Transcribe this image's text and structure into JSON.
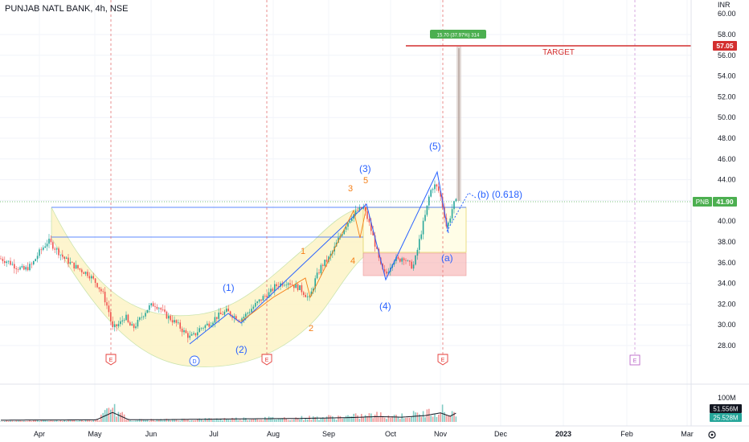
{
  "header": {
    "symbol_title": "PUNJAB NATL BANK, 4h, NSE"
  },
  "price_axis": {
    "unit_label": "INR",
    "top_partial_label": "60.00",
    "ticks": [
      "58.00",
      "56.00",
      "54.00",
      "52.00",
      "50.00",
      "48.00",
      "46.00",
      "44.00",
      "42.00",
      "40.00",
      "38.00",
      "36.00",
      "34.00",
      "32.00",
      "30.00",
      "28.00"
    ]
  },
  "badges": {
    "target_price": "57.05",
    "symbol": "PNB",
    "last_price": "41.90",
    "volume_max": "100M",
    "volume_value": "51.556M",
    "volume_avg": "25.528M"
  },
  "time_axis": {
    "labels": [
      "Apr",
      "May",
      "Jun",
      "Jul",
      "Aug",
      "Sep",
      "Oct",
      "Nov",
      "Dec",
      "2023",
      "Feb",
      "Mar"
    ]
  },
  "annotations": {
    "target_label": "TARGET",
    "measure_label": "15.70 (37.97%) 314",
    "wave_b_label": "(b) (0.618)",
    "wave_labels_blue": [
      "(1)",
      "(2)",
      "(3)",
      "(4)",
      "(5)",
      "(a)"
    ],
    "wave_labels_orange": [
      "1",
      "2",
      "3",
      "4",
      "5"
    ],
    "event_markers": [
      "E",
      "D",
      "E",
      "E",
      "E"
    ]
  },
  "colors": {
    "candle_up": "#26a69a",
    "candle_down": "#ef5350",
    "wave_blue": "#2962ff",
    "wave_orange": "#f57f17",
    "target_red": "#d32f2f",
    "last_price_green": "#4caf50",
    "event_pink": "#e91e63",
    "event_future": "#ba68c8",
    "cup_fill": "#fdf5c9",
    "box_red": "#f8bbbb"
  },
  "chart_data": {
    "type": "candlestick",
    "title": "PUNJAB NATL BANK, 4h, NSE",
    "ylim": [
      26.2,
      60.2
    ],
    "key_levels": {
      "target": 57.05,
      "last": 41.9,
      "resistance_1": 41.5,
      "resistance_2": 38.5
    },
    "close_path": [
      [
        0,
        36.4
      ],
      [
        10,
        36.1
      ],
      [
        20,
        35.6
      ],
      [
        30,
        35.3
      ],
      [
        40,
        35.8
      ],
      [
        48,
        36.9
      ],
      [
        55,
        37.6
      ],
      [
        60,
        38.1
      ],
      [
        65,
        37.7
      ],
      [
        72,
        37.1
      ],
      [
        80,
        36.4
      ],
      [
        90,
        35.8
      ],
      [
        100,
        35.3
      ],
      [
        110,
        34.9
      ],
      [
        120,
        34.0
      ],
      [
        128,
        33.0
      ],
      [
        135,
        31.4
      ],
      [
        140,
        29.6
      ],
      [
        145,
        29.9
      ],
      [
        150,
        30.2
      ],
      [
        156,
        30.9
      ],
      [
        160,
        30.0
      ],
      [
        166,
        29.7
      ],
      [
        172,
        30.3
      ],
      [
        178,
        31.0
      ],
      [
        185,
        31.7
      ],
      [
        192,
        32.0
      ],
      [
        198,
        31.7
      ],
      [
        205,
        31.0
      ],
      [
        212,
        30.6
      ],
      [
        220,
        30.1
      ],
      [
        228,
        29.4
      ],
      [
        236,
        28.8
      ],
      [
        242,
        29.0
      ],
      [
        248,
        29.6
      ],
      [
        255,
        29.9
      ],
      [
        262,
        30.2
      ],
      [
        268,
        30.7
      ],
      [
        275,
        31.0
      ],
      [
        282,
        31.3
      ],
      [
        290,
        30.9
      ],
      [
        298,
        30.5
      ],
      [
        305,
        30.9
      ],
      [
        312,
        31.5
      ],
      [
        320,
        32.1
      ],
      [
        328,
        32.7
      ],
      [
        336,
        33.1
      ],
      [
        342,
        33.7
      ],
      [
        350,
        34.0
      ],
      [
        358,
        34.2
      ],
      [
        365,
        33.8
      ],
      [
        372,
        33.6
      ],
      [
        378,
        33.1
      ],
      [
        385,
        32.5
      ],
      [
        392,
        34.3
      ],
      [
        400,
        35.7
      ],
      [
        408,
        36.3
      ],
      [
        415,
        37.2
      ],
      [
        422,
        38.4
      ],
      [
        430,
        39.6
      ],
      [
        438,
        40.5
      ],
      [
        445,
        41.0
      ],
      [
        452,
        41.3
      ],
      [
        458,
        40.1
      ],
      [
        465,
        38.3
      ],
      [
        470,
        36.7
      ],
      [
        475,
        35.3
      ],
      [
        480,
        34.8
      ],
      [
        485,
        35.6
      ],
      [
        490,
        36.4
      ],
      [
        496,
        36.2
      ],
      [
        502,
        36.6
      ],
      [
        508,
        35.9
      ],
      [
        514,
        35.6
      ],
      [
        518,
        36.7
      ],
      [
        522,
        38.2
      ],
      [
        526,
        39.6
      ],
      [
        530,
        40.8
      ],
      [
        535,
        42.8
      ],
      [
        540,
        43.5
      ],
      [
        545,
        43.1
      ],
      [
        548,
        42.4
      ],
      [
        552,
        41.0
      ],
      [
        556,
        39.3
      ],
      [
        560,
        40.4
      ],
      [
        564,
        41.6
      ],
      [
        568,
        41.9
      ]
    ],
    "volume_m": [
      [
        0,
        4
      ],
      [
        40,
        6
      ],
      [
        80,
        6
      ],
      [
        120,
        7
      ],
      [
        140,
        55
      ],
      [
        160,
        8
      ],
      [
        200,
        8
      ],
      [
        240,
        10
      ],
      [
        280,
        12
      ],
      [
        320,
        14
      ],
      [
        360,
        15
      ],
      [
        400,
        18
      ],
      [
        440,
        22
      ],
      [
        470,
        28
      ],
      [
        500,
        24
      ],
      [
        530,
        35
      ],
      [
        548,
        52
      ],
      [
        560,
        30
      ],
      [
        568,
        51.556
      ]
    ],
    "volume_avg_m": 25.528,
    "wave_count": {
      "(1)": 31.3,
      "(2)": 30.5,
      "(3)": 41.3,
      "(4)": 34.8,
      "(5)": 44.5,
      "(a)": 39.3,
      "(b)": 42.2,
      "1": 36.5,
      "2": 32.5,
      "3": 41.8,
      "4": 35.7,
      "5": 41.3
    },
    "measure": {
      "from": 41.35,
      "to": 57.05,
      "change": 15.7,
      "percent": 37.97,
      "bars": 314
    }
  }
}
